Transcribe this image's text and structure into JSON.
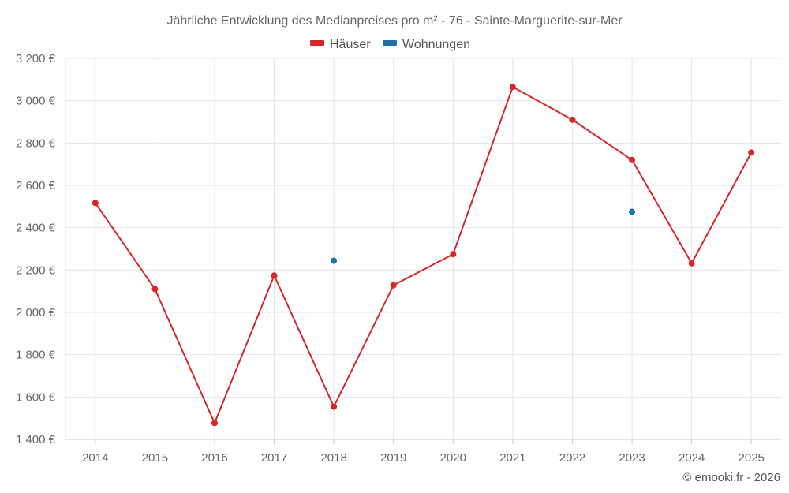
{
  "chart_data": {
    "type": "line",
    "title": "Jährliche Entwicklung des Medianpreises pro m² - 76 - Sainte-Marguerite-sur-Mer",
    "categories": [
      "2014",
      "2015",
      "2016",
      "2017",
      "2018",
      "2019",
      "2020",
      "2021",
      "2022",
      "2023",
      "2024",
      "2025"
    ],
    "series": [
      {
        "name": "Häuser",
        "color": "#d62728",
        "values": [
          2517,
          2110,
          1477,
          2174,
          1554,
          2128,
          2275,
          3065,
          2910,
          2720,
          2232,
          2755
        ]
      },
      {
        "name": "Wohnungen",
        "color": "#1f6fa8",
        "values": [
          null,
          null,
          null,
          null,
          2244,
          null,
          null,
          null,
          null,
          2475,
          null,
          null
        ]
      }
    ],
    "ylim": [
      1400,
      3200
    ],
    "yticks": [
      1400,
      1600,
      1800,
      2000,
      2200,
      2400,
      2600,
      2800,
      3000,
      3200
    ],
    "ytick_labels": [
      "1 400 €",
      "1 600 €",
      "1 800 €",
      "2 000 €",
      "2 200 €",
      "2 400 €",
      "2 600 €",
      "2 800 €",
      "3 000 €",
      "3 200 €"
    ],
    "xlabel": "",
    "ylabel": "",
    "grid": true,
    "legend": "top-center",
    "credit": "© emooki.fr - 2026"
  }
}
